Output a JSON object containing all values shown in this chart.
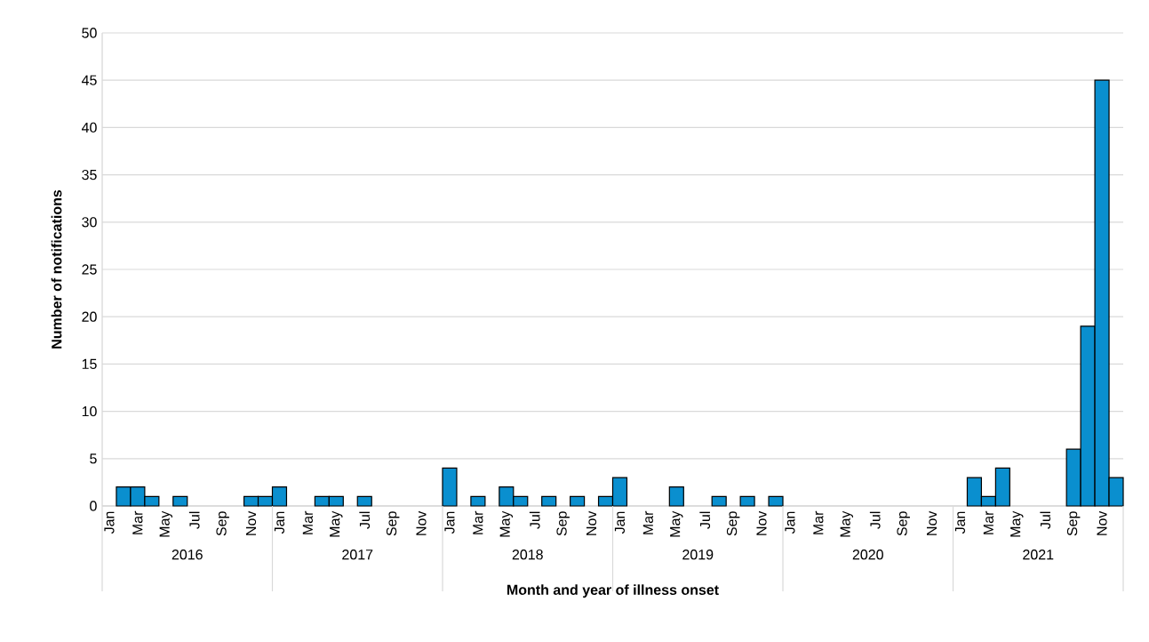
{
  "chart_data": {
    "type": "bar",
    "xlabel": "Month and year of illness onset",
    "ylabel": "Number of notifications",
    "categories": [
      "Jan",
      null,
      "Mar",
      null,
      "May",
      null,
      "Jul",
      null,
      "Sep",
      null,
      "Nov",
      null,
      "Jan",
      null,
      "Mar",
      null,
      "May",
      null,
      "Jul",
      null,
      "Sep",
      null,
      "Nov",
      null,
      "Jan",
      null,
      "Mar",
      null,
      "May",
      null,
      "Jul",
      null,
      "Sep",
      null,
      "Nov",
      null,
      "Jan",
      null,
      "Mar",
      null,
      "May",
      null,
      "Jul",
      null,
      "Sep",
      null,
      "Nov",
      null,
      "Jan",
      null,
      "Mar",
      null,
      "May",
      null,
      "Jul",
      null,
      "Sep",
      null,
      "Nov",
      null,
      "Jan",
      null,
      "Mar",
      null,
      "May",
      null,
      "Jul",
      null,
      "Sep",
      null,
      "Nov",
      null
    ],
    "values": [
      0,
      2,
      2,
      1,
      0,
      1,
      0,
      0,
      0,
      0,
      1,
      1,
      2,
      0,
      0,
      1,
      1,
      0,
      1,
      0,
      0,
      0,
      0,
      0,
      4,
      0,
      1,
      0,
      2,
      1,
      0,
      1,
      0,
      1,
      0,
      1,
      3,
      0,
      0,
      0,
      2,
      0,
      0,
      1,
      0,
      1,
      0,
      1,
      0,
      0,
      0,
      0,
      0,
      0,
      0,
      0,
      0,
      0,
      0,
      0,
      0,
      3,
      1,
      4,
      0,
      0,
      0,
      0,
      6,
      19,
      45,
      3
    ],
    "color": "#0a8fcf",
    "annotations": [
      "2016",
      "2017",
      "2018",
      "2019",
      "2020",
      "2021"
    ],
    "ylim": [
      0,
      50
    ],
    "yticks": [
      0,
      5,
      10,
      15,
      20,
      25,
      30,
      35,
      40,
      45,
      50
    ],
    "grid": "y"
  }
}
